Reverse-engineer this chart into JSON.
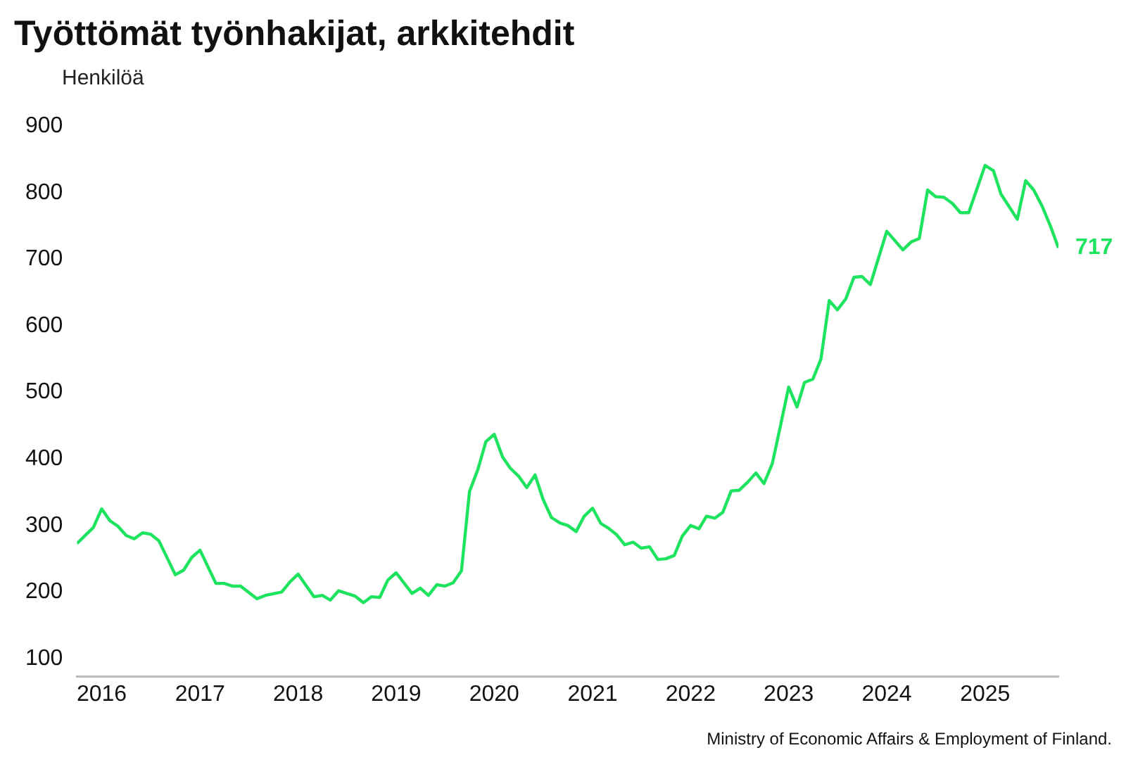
{
  "chart_data": {
    "type": "line",
    "title": "Työttömät työnhakijat, arkkitehdit",
    "ylabel": "Henkilöä",
    "annotations": [
      "Ministry of Economic Affairs & Employment of Finland."
    ],
    "x": [
      "2015-10",
      "2015-12",
      "2016-01",
      "2016-02",
      "2016-03",
      "2016-04",
      "2016-05",
      "2016-06",
      "2016-07",
      "2016-08",
      "2016-10",
      "2016-11",
      "2016-12",
      "2017-01",
      "2017-03",
      "2017-04",
      "2017-05",
      "2017-06",
      "2017-08",
      "2017-09",
      "2017-11",
      "2017-12",
      "2018-01",
      "2018-03",
      "2018-04",
      "2018-05",
      "2018-06",
      "2018-07",
      "2018-08",
      "2018-09",
      "2018-10",
      "2018-11",
      "2018-12",
      "2019-01",
      "2019-03",
      "2019-04",
      "2019-05",
      "2019-06",
      "2019-07",
      "2019-08",
      "2019-09",
      "2019-10",
      "2019-11",
      "2019-12",
      "2020-01",
      "2020-02",
      "2020-03",
      "2020-04",
      "2020-05",
      "2020-06",
      "2020-07",
      "2020-08",
      "2020-09",
      "2020-10",
      "2020-11",
      "2020-12",
      "2021-01",
      "2021-02",
      "2021-03",
      "2021-04",
      "2021-05",
      "2021-06",
      "2021-07",
      "2021-08",
      "2021-09",
      "2021-10",
      "2021-11",
      "2021-12",
      "2022-01",
      "2022-02",
      "2022-03",
      "2022-04",
      "2022-05",
      "2022-06",
      "2022-07",
      "2022-08",
      "2022-09",
      "2022-10",
      "2022-11",
      "2022-12",
      "2023-01",
      "2023-02",
      "2023-03",
      "2023-04",
      "2023-05",
      "2023-06",
      "2023-07",
      "2023-08",
      "2023-09",
      "2023-10",
      "2023-11",
      "2024-01",
      "2024-03",
      "2024-04",
      "2024-05",
      "2024-06",
      "2024-07",
      "2024-08",
      "2024-09",
      "2024-10",
      "2024-11",
      "2025-01",
      "2025-02",
      "2025-03",
      "2025-05",
      "2025-06",
      "2025-07",
      "2025-08",
      "2025-09",
      "2025-10"
    ],
    "series": [
      {
        "color": "#1ee35f",
        "values": [
          273,
          297,
          325,
          307,
          299,
          285,
          280,
          289,
          287,
          277,
          226,
          233,
          252,
          263,
          213,
          213,
          209,
          209,
          190,
          195,
          200,
          215,
          227,
          193,
          195,
          188,
          202,
          198,
          194,
          184,
          193,
          192,
          218,
          229,
          198,
          206,
          195,
          211,
          209,
          214,
          232,
          351,
          384,
          426,
          437,
          403,
          386,
          374,
          357,
          376,
          339,
          312,
          304,
          300,
          291,
          314,
          326,
          303,
          296,
          286,
          271,
          275,
          266,
          268,
          249,
          250,
          255,
          284,
          300,
          295,
          314,
          311,
          320,
          352,
          353,
          365,
          379,
          363,
          393,
          449,
          508,
          478,
          515,
          520,
          550,
          638,
          624,
          640,
          673,
          674,
          662,
          742,
          714,
          726,
          731,
          804,
          794,
          793,
          784,
          770,
          770,
          841,
          833,
          798,
          760,
          818,
          804,
          780,
          750,
          717
        ],
        "value_labels": [
          null,
          null,
          null,
          null,
          null,
          null,
          null,
          null,
          null,
          null,
          null,
          null,
          null,
          null,
          null,
          null,
          null,
          null,
          null,
          null,
          null,
          null,
          null,
          null,
          null,
          null,
          null,
          null,
          null,
          null,
          null,
          null,
          null,
          null,
          null,
          null,
          null,
          null,
          null,
          null,
          null,
          null,
          null,
          null,
          null,
          null,
          null,
          null,
          null,
          null,
          null,
          null,
          null,
          null,
          null,
          null,
          null,
          null,
          null,
          null,
          null,
          null,
          null,
          null,
          null,
          null,
          null,
          null,
          null,
          null,
          null,
          null,
          null,
          null,
          null,
          null,
          null,
          null,
          null,
          null,
          null,
          null,
          null,
          null,
          null,
          null,
          null,
          null,
          null,
          null,
          null,
          null,
          null,
          null,
          null,
          null,
          null,
          null,
          null,
          null,
          null,
          null,
          null,
          null,
          null,
          null,
          null,
          null,
          null,
          "717"
        ]
      }
    ],
    "xlim": [
      "2015-10",
      "2025-10"
    ],
    "xticks": [
      "2016",
      "2017",
      "2018",
      "2019",
      "2020",
      "2021",
      "2022",
      "2023",
      "2024",
      "2025"
    ],
    "ylim": [
      73,
      900
    ],
    "yticks": [
      100,
      200,
      300,
      400,
      500,
      600,
      700,
      800,
      900
    ]
  }
}
